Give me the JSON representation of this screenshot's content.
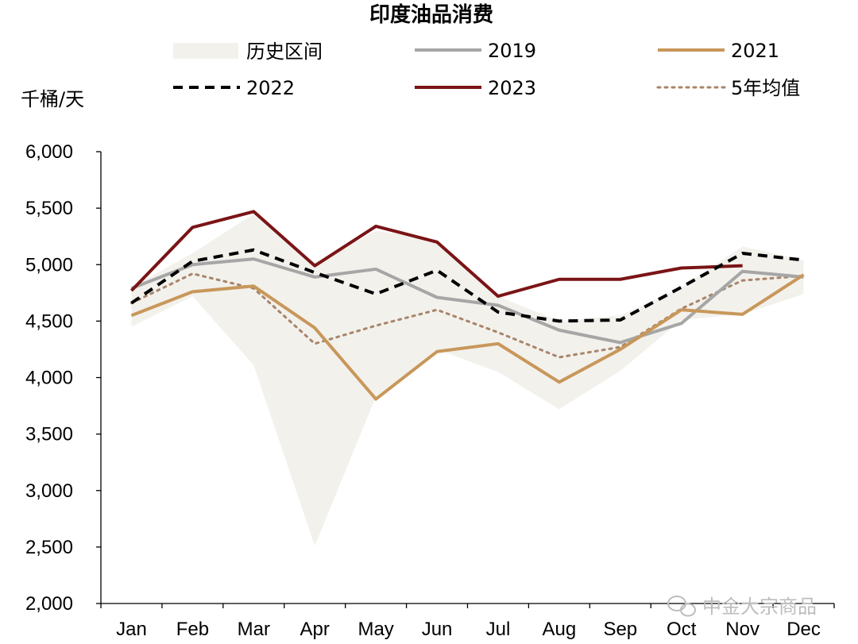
{
  "chart_data": {
    "type": "line",
    "title": "印度油品消费",
    "ylabel": "千桶/天",
    "xlabel": "",
    "ylim": [
      2000,
      6000
    ],
    "yticks": [
      2000,
      2500,
      3000,
      3500,
      4000,
      4500,
      5000,
      5500,
      6000
    ],
    "ytick_labels": [
      "2,000",
      "2,500",
      "3,000",
      "3,500",
      "4,000",
      "4,500",
      "5,000",
      "5,500",
      "6,000"
    ],
    "categories": [
      "Jan",
      "Feb",
      "Mar",
      "Apr",
      "May",
      "Jun",
      "Jul",
      "Aug",
      "Sep",
      "Oct",
      "Nov",
      "Dec"
    ],
    "legend_position": "top",
    "range_band": {
      "name": "历史区间",
      "color": "#f2f1ec",
      "low": [
        4450,
        4720,
        4110,
        2510,
        3830,
        4250,
        4050,
        3720,
        4060,
        4510,
        4560,
        4740
      ],
      "high": [
        4800,
        5100,
        5450,
        5010,
        5300,
        5220,
        4720,
        4500,
        4550,
        4800,
        5160,
        5040
      ]
    },
    "series": [
      {
        "name": "2019",
        "color": "#a6a6a6",
        "style": "solid",
        "values": [
          4790,
          5000,
          5050,
          4890,
          4960,
          4710,
          4640,
          4420,
          4310,
          4480,
          4940,
          4890
        ]
      },
      {
        "name": "2021",
        "color": "#c8975a",
        "style": "solid",
        "values": [
          4550,
          4760,
          4810,
          4440,
          3810,
          4230,
          4300,
          3960,
          4250,
          4600,
          4560,
          4910
        ]
      },
      {
        "name": "2022",
        "color": "#000000",
        "style": "dashed",
        "values": [
          4660,
          5030,
          5130,
          4930,
          4740,
          4950,
          4580,
          4500,
          4510,
          4800,
          5100,
          5040
        ]
      },
      {
        "name": "2023",
        "color": "#7b1416",
        "style": "solid",
        "values": [
          4770,
          5330,
          5470,
          4990,
          5340,
          5200,
          4720,
          4870,
          4870,
          4970,
          4990,
          null
        ]
      },
      {
        "name": "5年均值",
        "color": "#a8856a",
        "style": "dotted",
        "values": [
          4660,
          4920,
          4790,
          4300,
          4460,
          4600,
          4400,
          4180,
          4270,
          4610,
          4860,
          4900
        ]
      }
    ]
  },
  "watermark": "中金大宗商品"
}
